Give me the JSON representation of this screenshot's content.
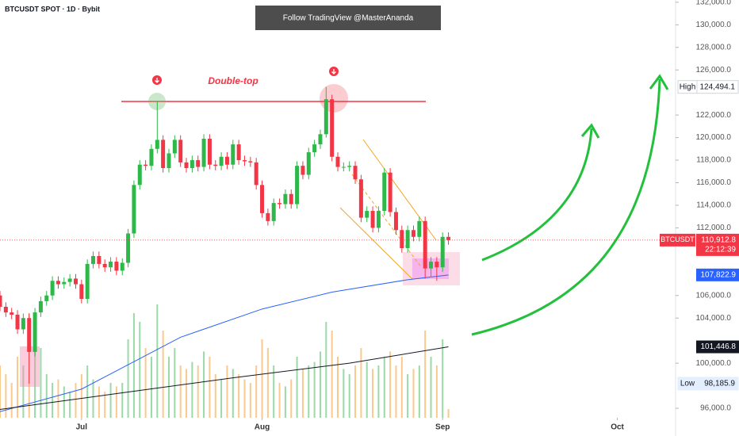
{
  "chart_data": {
    "type": "candlestick",
    "title": "BTCUSDT SPOT · 1D · Bybit",
    "banner": "Follow TradingView @MasterAnanda",
    "annotation": "Double-top",
    "up_color": "#2eb84a",
    "down_color": "#f23645",
    "volume_up_color": "#9bd9a8",
    "volume_down_color": "#f9c98e",
    "x": [
      0,
      1,
      2,
      3,
      4,
      5,
      6,
      7,
      8,
      9,
      10,
      11,
      12,
      13,
      14,
      15,
      16,
      17,
      18,
      19,
      20,
      21,
      22,
      23,
      24,
      25,
      26,
      27,
      28,
      29,
      30,
      31,
      32,
      33,
      34,
      35,
      36,
      37,
      38,
      39,
      40,
      41,
      42,
      43,
      44,
      45,
      46,
      47,
      48,
      49,
      50,
      51,
      52,
      53,
      54,
      55,
      56,
      57,
      58,
      59,
      60,
      61,
      62,
      63,
      64,
      65,
      66,
      67,
      68,
      69,
      70,
      71,
      72,
      73,
      74,
      75,
      76,
      77
    ],
    "open": [
      106000,
      105000,
      104500,
      104300,
      103000,
      104000,
      101000,
      104500,
      105500,
      106000,
      107300,
      107000,
      107200,
      107500,
      107000,
      105700,
      108800,
      109500,
      108800,
      108500,
      109000,
      108200,
      108900,
      111500,
      115800,
      117600,
      117500,
      119000,
      119800,
      117300,
      118600,
      119800,
      117800,
      117300,
      118000,
      117400,
      119900,
      117600,
      117500,
      118300,
      117600,
      119400,
      118000,
      117900,
      117800,
      115800,
      113300,
      112600,
      114200,
      114100,
      115000,
      114100,
      117500,
      116700,
      118700,
      119400,
      120300,
      123400,
      118300,
      117400,
      117400,
      117500,
      116300,
      112900,
      113500,
      112000,
      113500,
      116900,
      113400,
      111800,
      110200,
      111800,
      111200,
      112600,
      108400,
      109000,
      108500,
      111200
    ],
    "high": [
      106400,
      105400,
      104900,
      104700,
      104400,
      104400,
      104900,
      105900,
      106400,
      107700,
      107700,
      107600,
      107900,
      107900,
      107400,
      109200,
      109900,
      109900,
      109200,
      109400,
      109400,
      109300,
      111900,
      116200,
      118000,
      118000,
      119400,
      123200,
      120200,
      119000,
      120200,
      120200,
      118200,
      118400,
      118400,
      120300,
      120300,
      118000,
      118700,
      118700,
      119800,
      119800,
      118400,
      118300,
      118200,
      116200,
      113700,
      114600,
      114600,
      115400,
      115400,
      117900,
      117900,
      119100,
      119800,
      120700,
      124494.1,
      123800,
      118700,
      117800,
      117900,
      117900,
      116700,
      113900,
      113900,
      113900,
      117300,
      117300,
      113800,
      112200,
      112200,
      112200,
      113000,
      113000,
      109400,
      109400,
      111600,
      111600
    ],
    "low": [
      104600,
      104100,
      103900,
      102600,
      102600,
      98185.9,
      100600,
      104100,
      105100,
      105600,
      106600,
      106600,
      106800,
      106600,
      105300,
      105300,
      108400,
      108400,
      108100,
      108100,
      107800,
      107800,
      108500,
      111100,
      115400,
      117100,
      117100,
      118600,
      116900,
      116900,
      118200,
      117400,
      116900,
      116900,
      117000,
      117000,
      117200,
      117100,
      117100,
      117200,
      117200,
      117600,
      117500,
      117400,
      115400,
      112900,
      112200,
      112200,
      113700,
      113700,
      113700,
      113700,
      116300,
      116300,
      118300,
      119000,
      120000,
      117900,
      117000,
      117000,
      117000,
      115900,
      112500,
      112500,
      111600,
      111600,
      113100,
      113000,
      111400,
      109800,
      109800,
      110800,
      110800,
      107500,
      107600,
      107300,
      108100,
      110500
    ],
    "close": [
      105000,
      104500,
      104300,
      103000,
      104000,
      101000,
      104500,
      105500,
      106000,
      107300,
      107000,
      107200,
      107500,
      107000,
      105700,
      108800,
      109500,
      108800,
      108500,
      109000,
      108200,
      108900,
      111500,
      115800,
      117600,
      117500,
      119000,
      119800,
      117300,
      118600,
      119800,
      117800,
      117300,
      118000,
      117400,
      119900,
      117600,
      117500,
      118300,
      117600,
      119400,
      118000,
      117900,
      117800,
      115800,
      113300,
      112600,
      114200,
      114100,
      115000,
      114100,
      117500,
      116700,
      118700,
      119400,
      120300,
      123400,
      118300,
      117400,
      117400,
      117500,
      116300,
      112900,
      113500,
      112000,
      113500,
      116900,
      113400,
      111800,
      110200,
      111800,
      111200,
      112600,
      108400,
      109000,
      108500,
      111200,
      110912.8
    ],
    "volume": [
      30,
      25,
      20,
      35,
      30,
      60,
      55,
      40,
      25,
      20,
      22,
      18,
      15,
      20,
      25,
      30,
      22,
      18,
      15,
      20,
      18,
      20,
      45,
      60,
      55,
      40,
      35,
      65,
      50,
      35,
      40,
      30,
      28,
      32,
      30,
      38,
      35,
      25,
      22,
      30,
      28,
      25,
      22,
      20,
      30,
      45,
      40,
      30,
      20,
      18,
      22,
      35,
      28,
      30,
      32,
      38,
      55,
      50,
      35,
      28,
      25,
      30,
      40,
      32,
      28,
      30,
      35,
      38,
      30,
      35,
      25,
      28,
      30,
      50,
      35,
      30,
      45,
      5
    ],
    "lines": [
      {
        "color": "#2962ff",
        "x": [
          0,
          14,
          31,
          45,
          57,
          70,
          77
        ],
        "values": [
          95700,
          97700,
          102300,
          104800,
          106300,
          107400,
          107822.9
        ],
        "value_labels": [
          null,
          null,
          null,
          null,
          null,
          null,
          "107,822.9"
        ]
      },
      {
        "color": "#131722",
        "x": [
          0,
          20,
          40,
          60,
          77
        ],
        "values": [
          95900,
          97300,
          98700,
          100000,
          101446.8
        ],
        "value_labels": [
          null,
          null,
          null,
          null,
          "101,446.8"
        ]
      }
    ],
    "price_line": {
      "name": "BTCUSDT",
      "value": 110912.8,
      "label": "110,912.8",
      "countdown": "22:12:39"
    },
    "high_marker": {
      "text": "High",
      "value": 124494.1,
      "label": "124,494.1"
    },
    "low_marker": {
      "text": "Low",
      "value": 98185.9,
      "label": "98,185.9"
    },
    "xlim": [
      0,
      116
    ],
    "ylim": [
      95300,
      132200
    ],
    "xticks": [
      {
        "value": 14,
        "label": "Jul"
      },
      {
        "value": 45,
        "label": "Aug"
      },
      {
        "value": 76,
        "label": "Sep"
      },
      {
        "value": 106,
        "label": "Oct"
      }
    ],
    "yticks": [
      {
        "value": 96000,
        "label": "96,000.0"
      },
      {
        "value": 100000,
        "label": "100,000.0"
      },
      {
        "value": 104000,
        "label": "104,000.0"
      },
      {
        "value": 106000,
        "label": "106,000.0"
      },
      {
        "value": 112000,
        "label": "112,000.0"
      },
      {
        "value": 114000,
        "label": "114,000.0"
      },
      {
        "value": 116000,
        "label": "116,000.0"
      },
      {
        "value": 118000,
        "label": "118,000.0"
      },
      {
        "value": 120000,
        "label": "120,000.0"
      },
      {
        "value": 122000,
        "label": "122,000.0"
      },
      {
        "value": 126000,
        "label": "126,000.0"
      },
      {
        "value": 128000,
        "label": "128,000.0"
      },
      {
        "value": 130000,
        "label": "130,000.0"
      },
      {
        "value": 132000,
        "label": "132,000.0"
      }
    ]
  }
}
